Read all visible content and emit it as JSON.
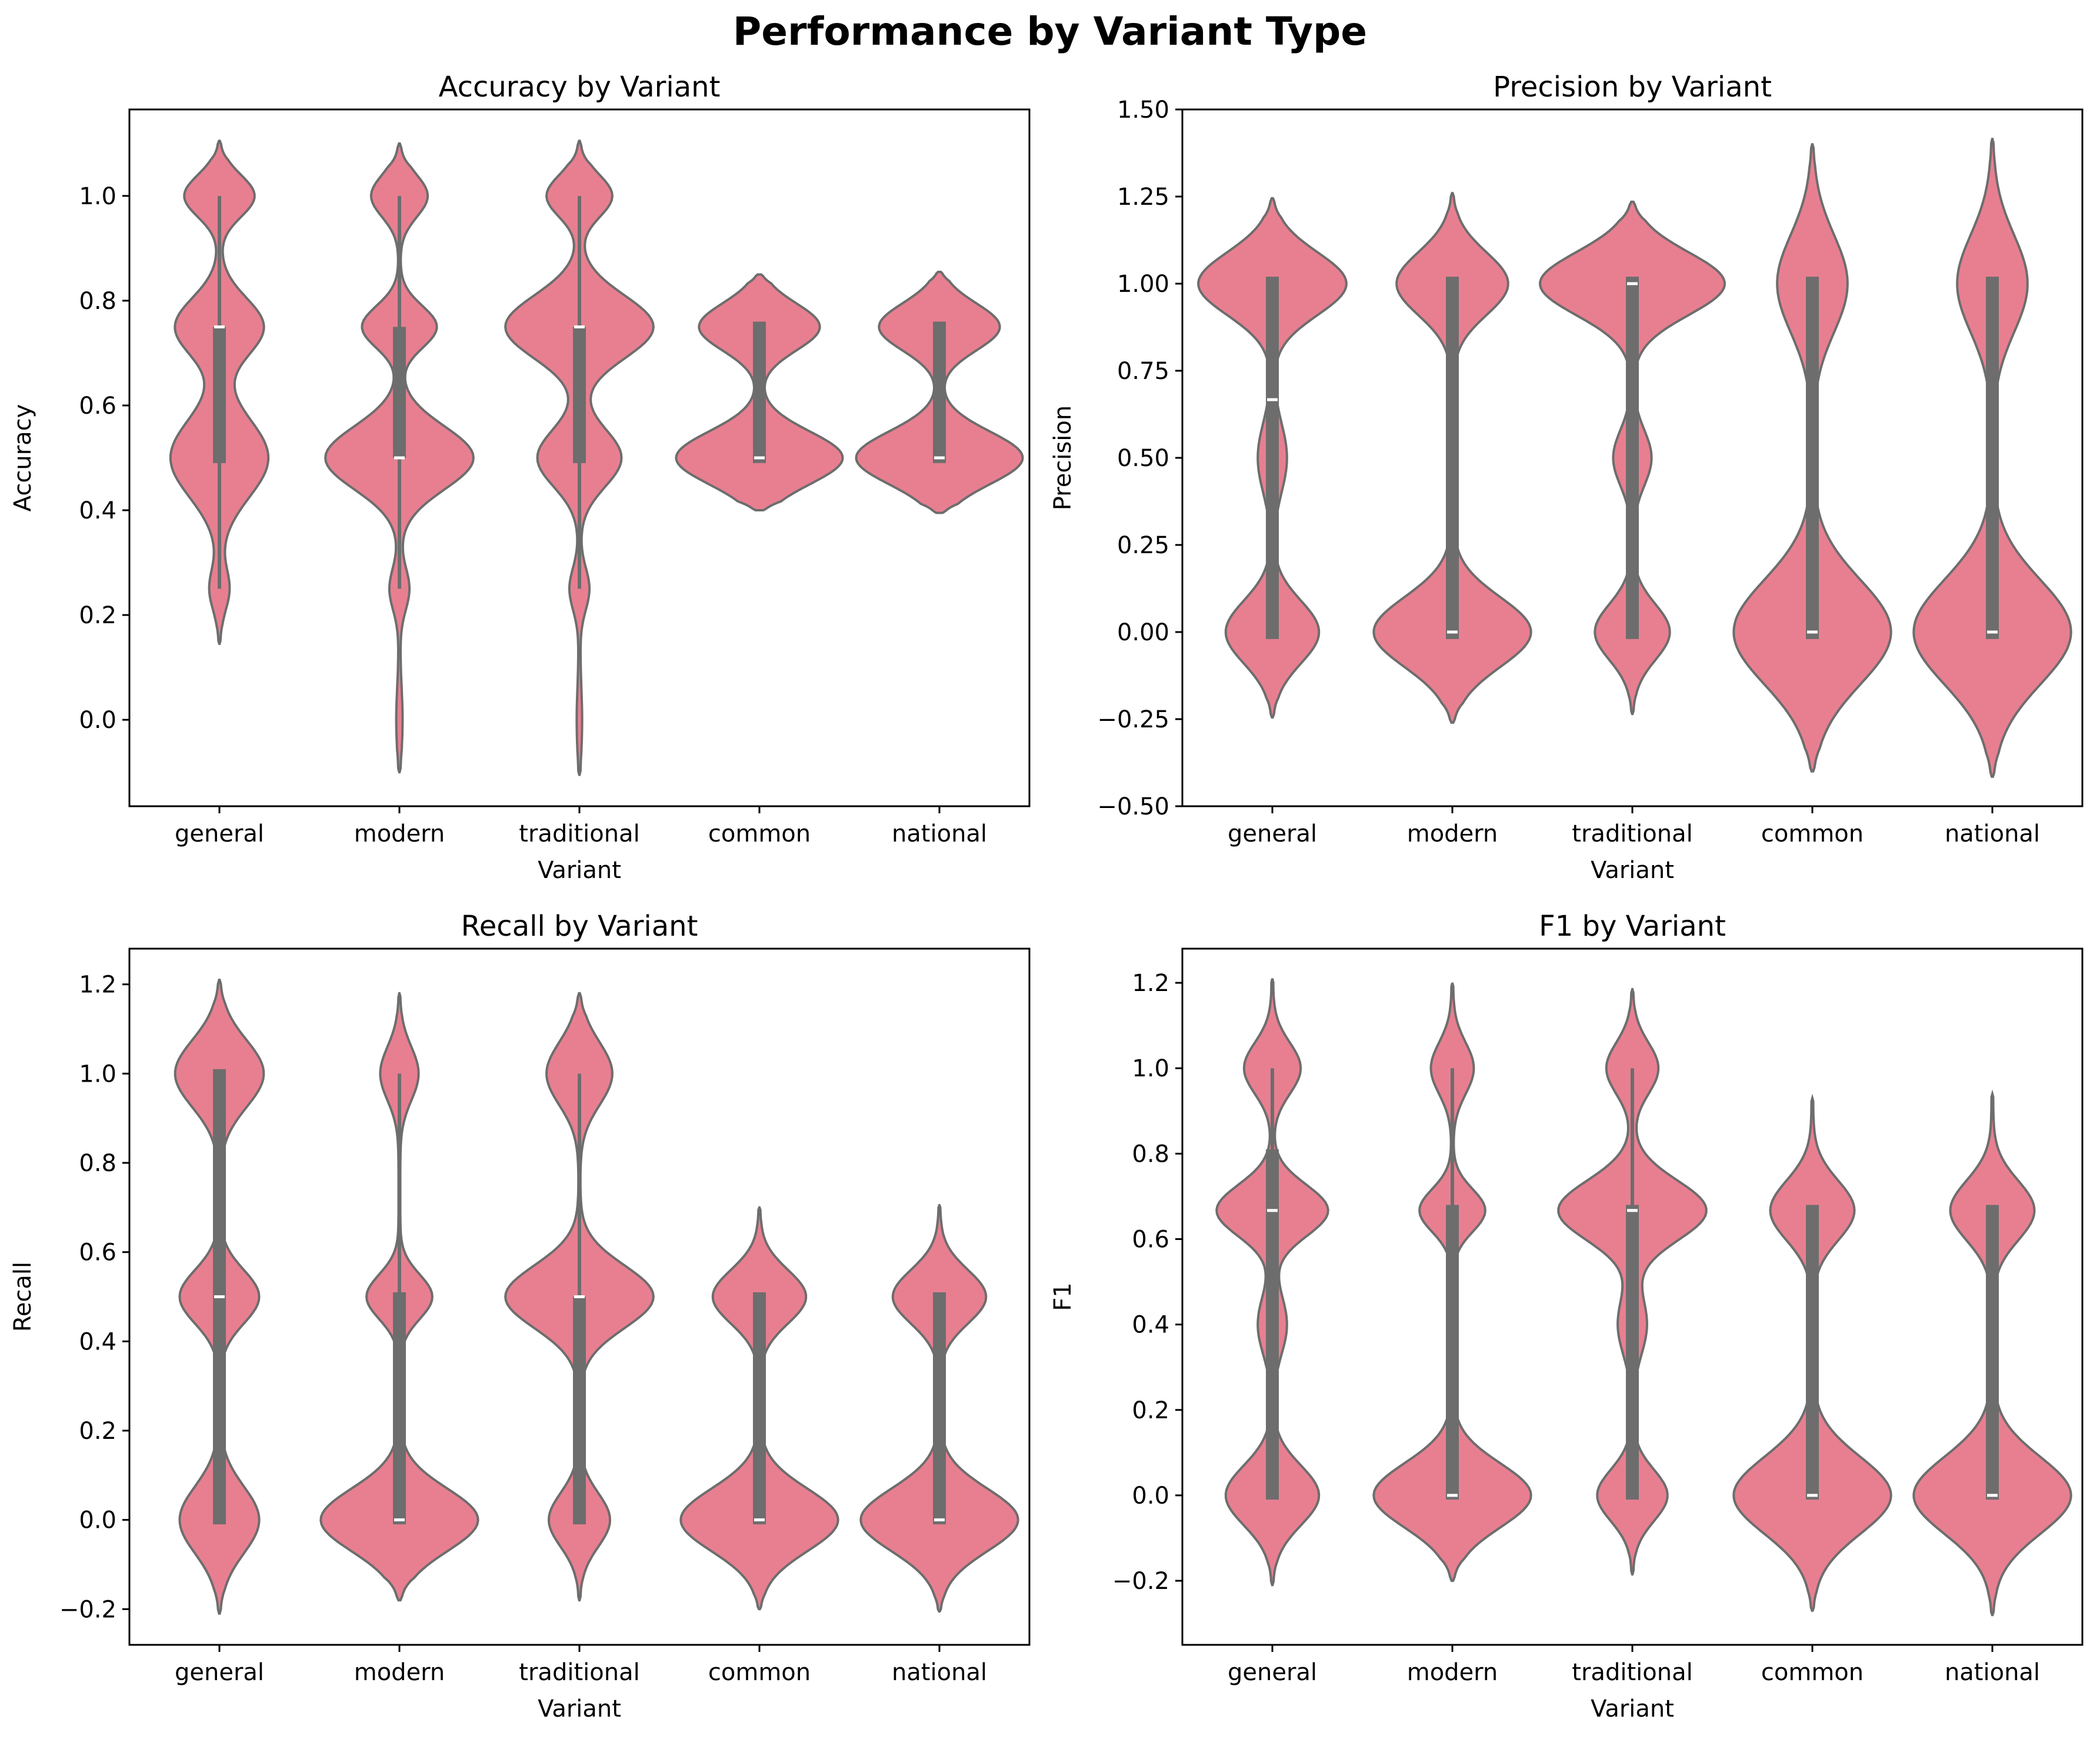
{
  "figure": {
    "title": "Performance by Variant Type"
  },
  "style": {
    "violin_fill": "#e87f90",
    "violin_edge": "#6d6d6d",
    "box_color": "#6d6d6d",
    "median_color": "#ffffff"
  },
  "chart_data": [
    {
      "type": "violin",
      "title": "Accuracy by Variant",
      "xlabel": "Variant",
      "ylabel": "Accuracy",
      "categories": [
        "general",
        "modern",
        "traditional",
        "common",
        "national"
      ],
      "ylim": [
        -0.165,
        1.165
      ],
      "yticks": [
        0.0,
        0.2,
        0.4,
        0.6,
        0.8,
        1.0
      ],
      "ytick_labels": [
        "0.0",
        "0.2",
        "0.4",
        "0.6",
        "0.8",
        "1.0"
      ],
      "violins": [
        {
          "range": [
            0.145,
            1.105
          ],
          "modes": [
            [
              0.5,
              0.105,
              0.075
            ],
            [
              0.75,
              0.095,
              0.055
            ],
            [
              1.0,
              0.075,
              0.04
            ],
            [
              0.25,
              0.02,
              0.04
            ]
          ],
          "q1": 0.49,
          "median": 0.75,
          "q3": 0.75,
          "whisker": [
            0.25,
            1.0
          ]
        },
        {
          "range": [
            -0.1,
            1.1
          ],
          "modes": [
            [
              0.5,
              0.16,
              0.06
            ],
            [
              0.75,
              0.08,
              0.04
            ],
            [
              1.0,
              0.06,
              0.04
            ],
            [
              0.25,
              0.02,
              0.04
            ],
            [
              0.0,
              0.005,
              0.06
            ]
          ],
          "q1": 0.5,
          "median": 0.5,
          "q3": 0.75,
          "whisker": [
            0.25,
            1.0
          ]
        },
        {
          "range": [
            -0.105,
            1.105
          ],
          "modes": [
            [
              0.5,
              0.09,
              0.055
            ],
            [
              0.75,
              0.16,
              0.06
            ],
            [
              1.0,
              0.07,
              0.04
            ],
            [
              0.25,
              0.02,
              0.04
            ],
            [
              0.0,
              0.004,
              0.06
            ]
          ],
          "q1": 0.49,
          "median": 0.75,
          "q3": 0.75,
          "whisker": [
            0.25,
            1.0
          ]
        },
        {
          "range": [
            0.4,
            0.85
          ],
          "modes": [
            [
              0.5,
              0.18,
              0.05
            ],
            [
              0.75,
              0.13,
              0.045
            ]
          ],
          "q1": 0.49,
          "median": 0.5,
          "q3": 0.76,
          "whisker": [
            0.5,
            0.75
          ]
        },
        {
          "range": [
            0.395,
            0.855
          ],
          "modes": [
            [
              0.5,
              0.18,
              0.05
            ],
            [
              0.75,
              0.13,
              0.045
            ]
          ],
          "q1": 0.49,
          "median": 0.5,
          "q3": 0.76,
          "whisker": [
            0.5,
            0.75
          ]
        }
      ]
    },
    {
      "type": "violin",
      "title": "Precision by Variant",
      "xlabel": "Variant",
      "ylabel": "Precision",
      "categories": [
        "general",
        "modern",
        "traditional",
        "common",
        "national"
      ],
      "ylim": [
        -0.5,
        1.5
      ],
      "yticks": [
        -0.5,
        -0.25,
        0.0,
        0.25,
        0.5,
        0.75,
        1.0,
        1.25,
        1.5
      ],
      "ytick_labels": [
        "−0.50",
        "−0.25",
        "0.00",
        "0.25",
        "0.50",
        "0.75",
        "1.00",
        "1.25",
        "1.50"
      ],
      "violins": [
        {
          "range": [
            -0.245,
            1.245
          ],
          "modes": [
            [
              0.0,
              0.1,
              0.09
            ],
            [
              1.0,
              0.16,
              0.09
            ],
            [
              0.5,
              0.03,
              0.1
            ]
          ],
          "q1": -0.02,
          "median": 0.667,
          "q3": 1.02,
          "whisker": [
            0.0,
            1.0
          ]
        },
        {
          "range": [
            -0.26,
            1.26
          ],
          "modes": [
            [
              0.0,
              0.17,
              0.1
            ],
            [
              1.0,
              0.12,
              0.09
            ]
          ],
          "q1": -0.02,
          "median": 0.0,
          "q3": 1.02,
          "whisker": [
            0.0,
            1.0
          ]
        },
        {
          "range": [
            -0.235,
            1.235
          ],
          "modes": [
            [
              0.0,
              0.08,
              0.08
            ],
            [
              1.0,
              0.2,
              0.09
            ],
            [
              0.5,
              0.04,
              0.08
            ]
          ],
          "q1": -0.02,
          "median": 1.0,
          "q3": 1.02,
          "whisker": [
            0.0,
            1.0
          ]
        },
        {
          "range": [
            -0.4,
            1.4
          ],
          "modes": [
            [
              0.0,
              0.17,
              0.15
            ],
            [
              1.0,
              0.075,
              0.14
            ]
          ],
          "q1": -0.02,
          "median": 0.0,
          "q3": 1.02,
          "whisker": [
            0.0,
            1.0
          ]
        },
        {
          "range": [
            -0.415,
            1.415
          ],
          "modes": [
            [
              0.0,
              0.17,
              0.15
            ],
            [
              1.0,
              0.075,
              0.14
            ]
          ],
          "q1": -0.02,
          "median": 0.0,
          "q3": 1.02,
          "whisker": [
            0.0,
            1.0
          ]
        }
      ]
    },
    {
      "type": "violin",
      "title": "Recall by Variant",
      "xlabel": "Variant",
      "ylabel": "Recall",
      "categories": [
        "general",
        "modern",
        "traditional",
        "common",
        "national"
      ],
      "ylim": [
        -0.28,
        1.28
      ],
      "yticks": [
        -0.2,
        0.0,
        0.2,
        0.4,
        0.6,
        0.8,
        1.0,
        1.2
      ],
      "ytick_labels": [
        "−0.2",
        "0.0",
        "0.2",
        "0.4",
        "0.6",
        "0.8",
        "1.0",
        "1.2"
      ],
      "violins": [
        {
          "range": [
            -0.21,
            1.21
          ],
          "modes": [
            [
              0.0,
              0.085,
              0.075
            ],
            [
              0.5,
              0.085,
              0.06
            ],
            [
              1.0,
              0.095,
              0.075
            ]
          ],
          "q1": -0.01,
          "median": 0.5,
          "q3": 1.01,
          "whisker": [
            0.0,
            1.0
          ]
        },
        {
          "range": [
            -0.18,
            1.18
          ],
          "modes": [
            [
              0.0,
              0.17,
              0.07
            ],
            [
              0.5,
              0.07,
              0.05
            ],
            [
              1.0,
              0.04,
              0.06
            ]
          ],
          "q1": -0.01,
          "median": 0.0,
          "q3": 0.51,
          "whisker": [
            0.0,
            1.0
          ]
        },
        {
          "range": [
            -0.18,
            1.18
          ],
          "modes": [
            [
              0.0,
              0.065,
              0.06
            ],
            [
              0.5,
              0.16,
              0.07
            ],
            [
              1.0,
              0.07,
              0.07
            ]
          ],
          "q1": -0.01,
          "median": 0.5,
          "q3": 0.5,
          "whisker": [
            0.0,
            1.0
          ]
        },
        {
          "range": [
            -0.2,
            0.7
          ],
          "modes": [
            [
              0.0,
              0.17,
              0.07
            ],
            [
              0.5,
              0.1,
              0.06
            ]
          ],
          "q1": -0.01,
          "median": 0.0,
          "q3": 0.51,
          "whisker": [
            0.0,
            0.5
          ]
        },
        {
          "range": [
            -0.205,
            0.705
          ],
          "modes": [
            [
              0.0,
              0.17,
              0.07
            ],
            [
              0.5,
              0.1,
              0.06
            ]
          ],
          "q1": -0.01,
          "median": 0.0,
          "q3": 0.51,
          "whisker": [
            0.0,
            0.5
          ]
        }
      ]
    },
    {
      "type": "violin",
      "title": "F1 by Variant",
      "xlabel": "Variant",
      "ylabel": "F1",
      "categories": [
        "general",
        "modern",
        "traditional",
        "common",
        "national"
      ],
      "ylim": [
        -0.35,
        1.28
      ],
      "yticks": [
        -0.2,
        0.0,
        0.2,
        0.4,
        0.6,
        0.8,
        1.0,
        1.2
      ],
      "ytick_labels": [
        "−0.2",
        "0.0",
        "0.2",
        "0.4",
        "0.6",
        "0.8",
        "1.0",
        "1.2"
      ],
      "violins": [
        {
          "range": [
            -0.21,
            1.21
          ],
          "modes": [
            [
              0.0,
              0.1,
              0.07
            ],
            [
              0.667,
              0.12,
              0.06
            ],
            [
              1.0,
              0.06,
              0.06
            ],
            [
              0.4,
              0.03,
              0.07
            ]
          ],
          "q1": -0.01,
          "median": 0.667,
          "q3": 0.81,
          "whisker": [
            0.0,
            1.0
          ]
        },
        {
          "range": [
            -0.2,
            1.2
          ],
          "modes": [
            [
              0.0,
              0.17,
              0.075
            ],
            [
              0.667,
              0.07,
              0.05
            ],
            [
              1.0,
              0.045,
              0.06
            ]
          ],
          "q1": -0.01,
          "median": 0.0,
          "q3": 0.68,
          "whisker": [
            0.0,
            1.0
          ]
        },
        {
          "range": [
            -0.185,
            1.185
          ],
          "modes": [
            [
              0.0,
              0.075,
              0.06
            ],
            [
              0.667,
              0.16,
              0.07
            ],
            [
              1.0,
              0.055,
              0.06
            ],
            [
              0.4,
              0.03,
              0.07
            ]
          ],
          "q1": -0.01,
          "median": 0.667,
          "q3": 0.68,
          "whisker": [
            0.0,
            1.0
          ]
        },
        {
          "range": [
            -0.27,
            0.93
          ],
          "modes": [
            [
              0.0,
              0.17,
              0.09
            ],
            [
              0.667,
              0.09,
              0.07
            ]
          ],
          "q1": -0.01,
          "median": 0.0,
          "q3": 0.68,
          "whisker": [
            0.0,
            0.667
          ]
        },
        {
          "range": [
            -0.28,
            0.94
          ],
          "modes": [
            [
              0.0,
              0.17,
              0.09
            ],
            [
              0.667,
              0.09,
              0.07
            ]
          ],
          "q1": -0.01,
          "median": 0.0,
          "q3": 0.68,
          "whisker": [
            0.0,
            0.667
          ]
        }
      ]
    }
  ]
}
